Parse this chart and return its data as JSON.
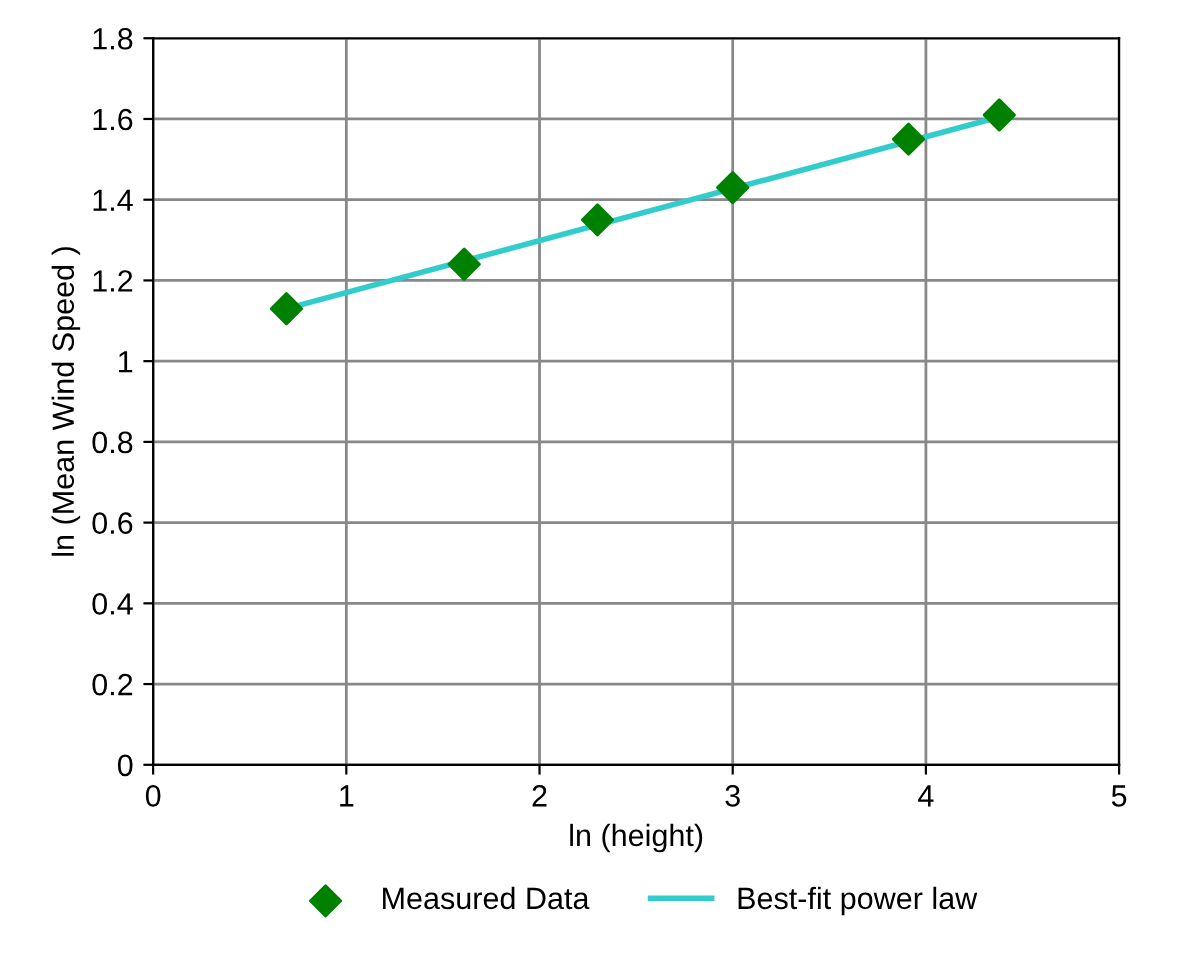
{
  "chart_data": {
    "type": "scatter",
    "xlabel": "ln (height)",
    "ylabel": "ln (Mean Wind Speed )",
    "series": [
      {
        "name": "Measured Data",
        "color": "#008000",
        "marker": "diamond",
        "x": [
          0.69,
          1.61,
          2.3,
          3.0,
          3.91,
          4.38
        ],
        "values": [
          1.13,
          1.24,
          1.35,
          1.43,
          1.55,
          1.61
        ]
      },
      {
        "name": "Best-fit power law",
        "type": "line",
        "color": "#33cccc",
        "marker": "none",
        "line_style": "solid",
        "x": [
          0.69,
          4.38
        ],
        "values": [
          1.13,
          1.605
        ]
      }
    ],
    "xlim": [
      0,
      5
    ],
    "xticks": [
      0,
      1,
      2,
      3,
      4,
      5
    ],
    "ylim": [
      0,
      1.8
    ],
    "yticks": [
      0,
      0.2,
      0.4,
      0.6,
      0.8,
      1,
      1.2,
      1.4,
      1.6,
      1.8
    ],
    "grid": true,
    "legend": "bottom"
  }
}
